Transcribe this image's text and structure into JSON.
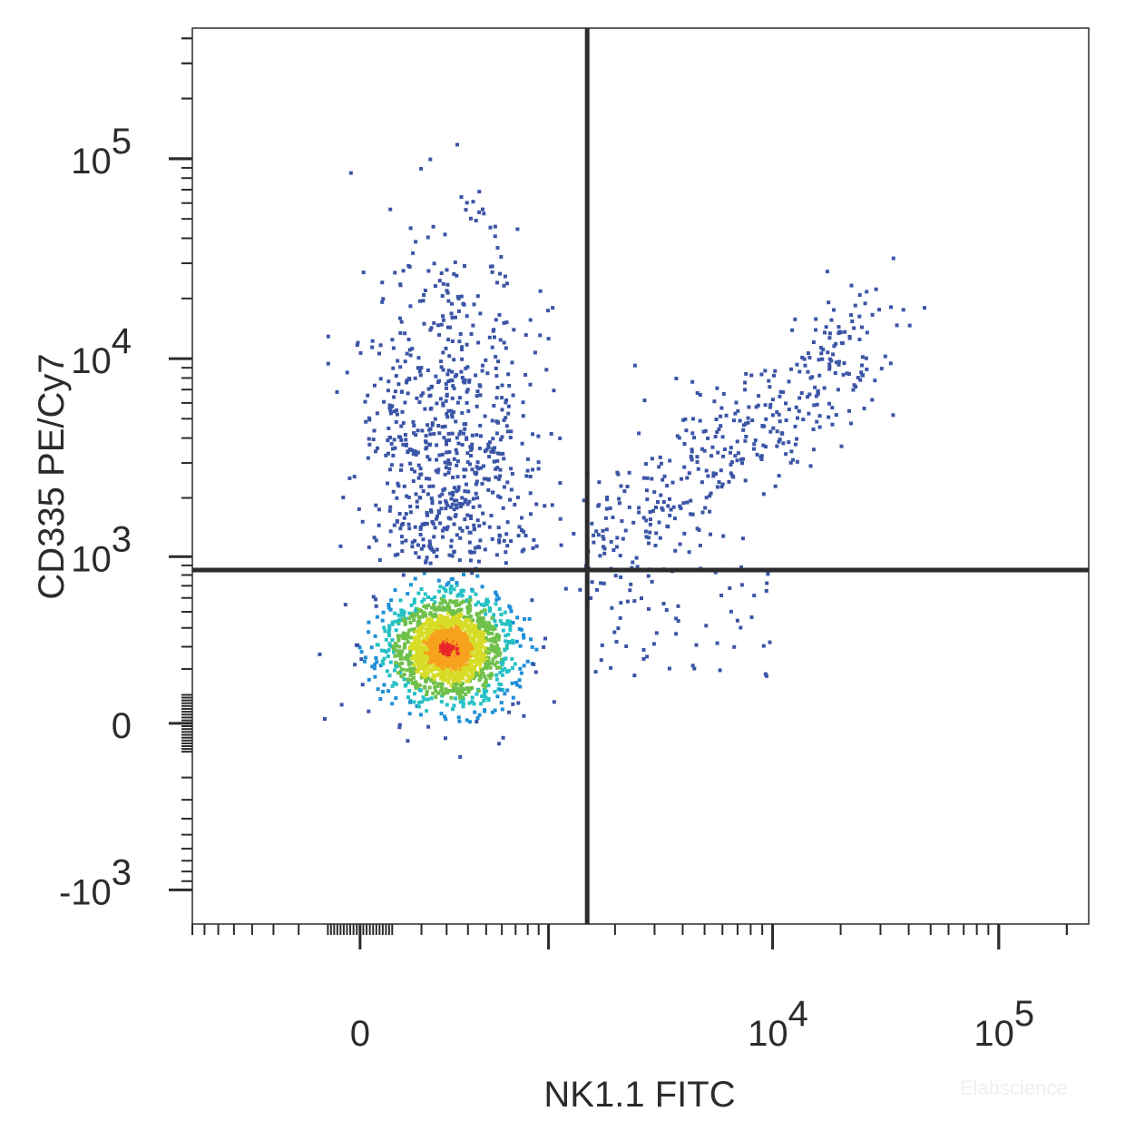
{
  "chart_data": {
    "type": "scatter",
    "subtype": "flow-cytometry density dot plot",
    "xlabel": "NK1.1 FITC",
    "ylabel": "CD335 PE/Cy7",
    "x_scale": "biexponential",
    "y_scale": "biexponential",
    "x_ticks": [
      {
        "value": 0,
        "label": "0"
      },
      {
        "value": 10000,
        "label": "10^4"
      },
      {
        "value": 100000,
        "label": "10^5"
      }
    ],
    "y_ticks": [
      {
        "value": -1000,
        "label": "-10^3"
      },
      {
        "value": 0,
        "label": "0"
      },
      {
        "value": 1000,
        "label": "10^3"
      },
      {
        "value": 10000,
        "label": "10^4"
      },
      {
        "value": 100000,
        "label": "10^5"
      }
    ],
    "xlim": [
      -800,
      250000
    ],
    "ylim": [
      -1500,
      450000
    ],
    "quadrant_gates": {
      "x": 1500,
      "y": 850
    },
    "populations": [
      {
        "label": "NK1.1- CD335- (main)",
        "center": [
          300,
          300
        ],
        "spread": "high density",
        "peak_color": "#e8262a"
      },
      {
        "label": "NK1.1- CD335+",
        "center": [
          300,
          3000
        ],
        "spread": "sparse",
        "color": "#3a54a6"
      },
      {
        "label": "NK1.1+ CD335+",
        "center": [
          4000,
          5000
        ],
        "spread": "sparse diagonal",
        "color": "#3a54a6"
      }
    ],
    "density_colors": [
      "#3a54a6",
      "#1f8fd6",
      "#25c1c4",
      "#6fc04a",
      "#d7dc26",
      "#f6a21d",
      "#e8262a"
    ],
    "grid": false,
    "watermark": "Elabscience"
  }
}
